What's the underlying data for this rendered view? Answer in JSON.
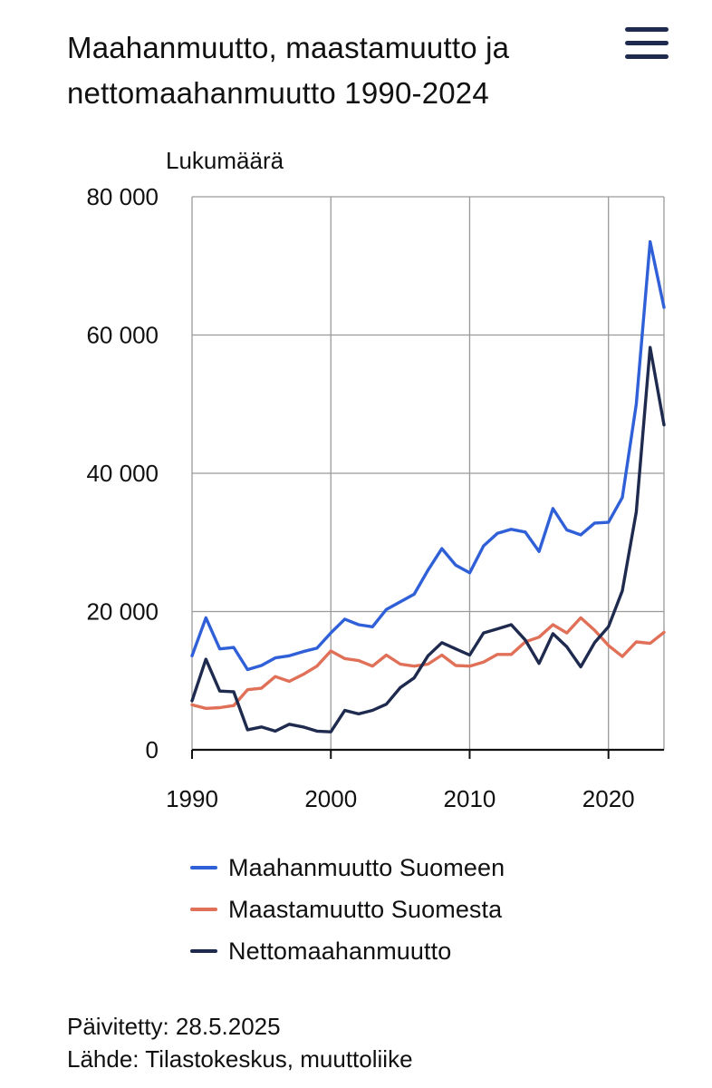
{
  "header": {
    "title": "Maahanmuutto, maastamuutto ja nettomaahanmuutto 1990-2024",
    "menu_icon": "hamburger-menu-icon"
  },
  "footer": {
    "updated": "Päivitetty: 28.5.2025",
    "source": "Lähde: Tilastokeskus, muuttoliike"
  },
  "chart_data": {
    "type": "line",
    "title": "Maahanmuutto, maastamuutto ja nettomaahanmuutto 1990-2024",
    "ylabel": "Lukumäärä",
    "xlabel": "",
    "xlim": [
      1990,
      2024
    ],
    "ylim": [
      0,
      80000
    ],
    "x_ticks": [
      1990,
      2000,
      2010,
      2020
    ],
    "x_tick_labels": [
      "1990",
      "2000",
      "2010",
      "2020"
    ],
    "y_ticks": [
      0,
      20000,
      40000,
      60000,
      80000
    ],
    "y_tick_labels": [
      "0",
      "20 000",
      "40 000",
      "60 000",
      "80 000"
    ],
    "grid": true,
    "legend_position": "bottom",
    "x": [
      1990,
      1991,
      1992,
      1993,
      1994,
      1995,
      1996,
      1997,
      1998,
      1999,
      2000,
      2001,
      2002,
      2003,
      2004,
      2005,
      2006,
      2007,
      2008,
      2009,
      2010,
      2011,
      2012,
      2013,
      2014,
      2015,
      2016,
      2017,
      2018,
      2019,
      2020,
      2021,
      2022,
      2023,
      2024
    ],
    "series": [
      {
        "name": "Maahanmuutto Suomeen",
        "color": "#3060d8",
        "values": [
          13600,
          19100,
          14600,
          14800,
          11600,
          12200,
          13300,
          13600,
          14200,
          14700,
          16900,
          18900,
          18100,
          17800,
          20300,
          21400,
          22500,
          26000,
          29100,
          26700,
          25600,
          29500,
          31300,
          31900,
          31500,
          28700,
          34900,
          31800,
          31100,
          32800,
          32900,
          36500,
          49999,
          73500,
          64000
        ]
      },
      {
        "name": "Maastamuutto Suomesta",
        "color": "#e07058",
        "values": [
          6500,
          6000,
          6100,
          6400,
          8700,
          8900,
          10600,
          9900,
          10900,
          12100,
          14300,
          13200,
          12900,
          12100,
          13700,
          12400,
          12100,
          12400,
          13700,
          12200,
          12100,
          12700,
          13800,
          13800,
          15600,
          16300,
          18100,
          16900,
          19100,
          17300,
          15100,
          13500,
          15600,
          15400,
          17000
        ]
      },
      {
        "name": "Nettomaahanmuutto",
        "color": "#1f2a4f",
        "values": [
          7100,
          13100,
          8500,
          8400,
          2900,
          3300,
          2700,
          3700,
          3300,
          2700,
          2600,
          5700,
          5200,
          5700,
          6600,
          9000,
          10400,
          13600,
          15500,
          14600,
          13700,
          16900,
          17500,
          18100,
          15900,
          12500,
          16800,
          14900,
          12000,
          15500,
          17800,
          23000,
          34400,
          58200,
          47000
        ]
      }
    ]
  }
}
